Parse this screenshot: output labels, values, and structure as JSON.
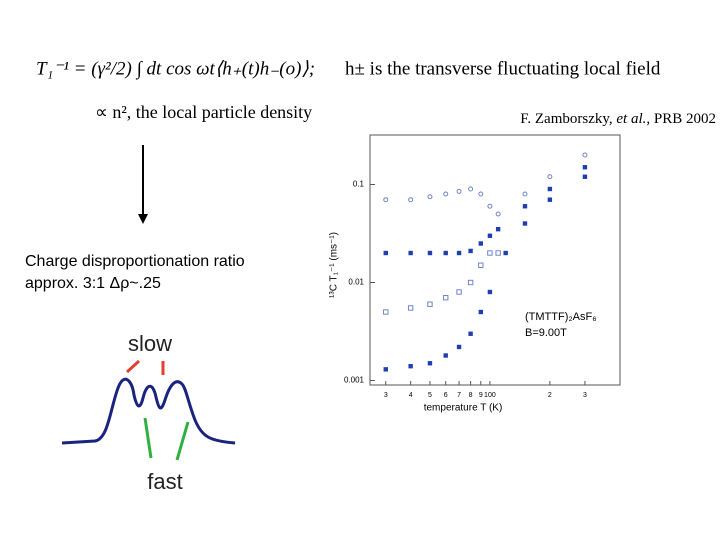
{
  "equation": {
    "formula": "T₁⁻¹ = (γ²/2) ∫ dt cos ωt⟨h₊(t)h₋(o)⟩;",
    "description": "h± is the transverse fluctuating local field",
    "proportional": "∝ n², the local particle density"
  },
  "citation": {
    "authors": "F. Zamborszky, ",
    "etal": "et al.",
    "journal": ", PRB 2002"
  },
  "note": {
    "line1": "Charge disproportionation ratio",
    "line2": "approx. 3:1 Δρ~.25"
  },
  "spectrum": {
    "slow": "slow",
    "fast": "fast"
  },
  "chart_data": {
    "type": "scatter",
    "xlabel": "temperature T (K)",
    "ylabel": "¹³C T₁⁻¹ (ms⁻¹)",
    "annotations": [
      "(TMTTF)₂AsF₆",
      "B=9.00T"
    ],
    "xlog": true,
    "ylog": true,
    "xlim": [
      25,
      450
    ],
    "ylim": [
      0.0009,
      0.32
    ],
    "xticks": [
      {
        "value": 30,
        "label": "3"
      },
      {
        "value": 40,
        "label": "4"
      },
      {
        "value": 50,
        "label": "5"
      },
      {
        "value": 60,
        "label": "6"
      },
      {
        "value": 70,
        "label": "7"
      },
      {
        "value": 80,
        "label": "8"
      },
      {
        "value": 90,
        "label": "9"
      },
      100,
      {
        "value": 200,
        "label": "2"
      },
      {
        "value": 300,
        "label": "3"
      }
    ],
    "yticks": [
      0.001,
      0.01,
      0.1
    ],
    "series": [
      {
        "marker": "open-circle",
        "color": "#6f86c9",
        "x": [
          30,
          40,
          50,
          60,
          70,
          80,
          90,
          100,
          110,
          150,
          200,
          300
        ],
        "values": [
          0.07,
          0.07,
          0.075,
          0.08,
          0.085,
          0.09,
          0.08,
          0.06,
          0.05,
          0.08,
          0.12,
          0.2
        ]
      },
      {
        "marker": "filled-square",
        "color": "#1f3fb0",
        "x": [
          30,
          40,
          50,
          60,
          70,
          80,
          90,
          100,
          110,
          150,
          200,
          300
        ],
        "values": [
          0.02,
          0.02,
          0.02,
          0.02,
          0.02,
          0.021,
          0.025,
          0.03,
          0.035,
          0.06,
          0.09,
          0.15
        ]
      },
      {
        "marker": "open-square",
        "color": "#6f86c9",
        "x": [
          30,
          40,
          50,
          60,
          70,
          80,
          90,
          100,
          110
        ],
        "values": [
          0.005,
          0.0055,
          0.006,
          0.007,
          0.008,
          0.01,
          0.015,
          0.02,
          0.02
        ]
      },
      {
        "marker": "filled-square",
        "color": "#1f3fb0",
        "x": [
          30,
          40,
          50,
          60,
          70,
          80,
          90,
          100,
          120,
          150,
          200,
          300
        ],
        "values": [
          0.0013,
          0.0014,
          0.0015,
          0.0018,
          0.0022,
          0.003,
          0.005,
          0.008,
          0.02,
          0.04,
          0.07,
          0.12
        ]
      }
    ]
  }
}
